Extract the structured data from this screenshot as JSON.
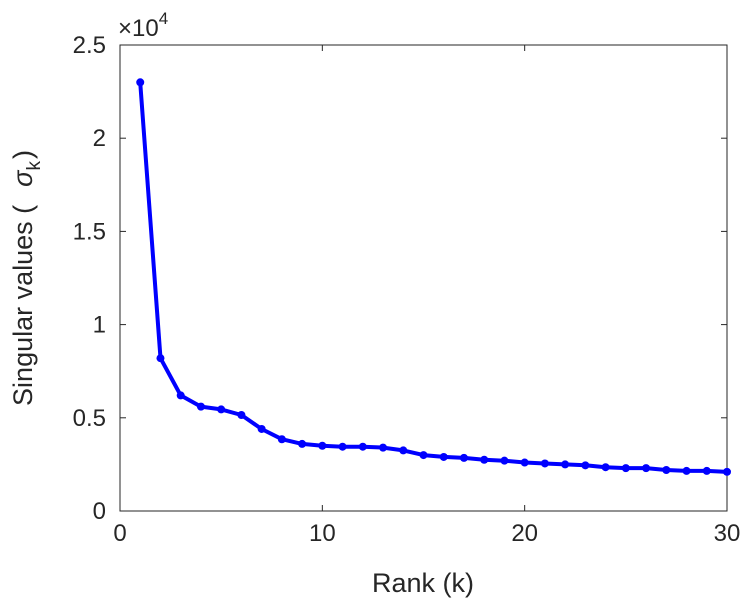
{
  "chart_data": {
    "type": "line",
    "title": "",
    "xlabel": "Rank (k)",
    "ylabel": "Singular values (",
    "ylabel_symbol": "σ",
    "ylabel_subscript": "k",
    "ylabel_close": ")",
    "y_multiplier_base": "×10",
    "y_multiplier_exponent": "4",
    "xlim": [
      0,
      30
    ],
    "ylim": [
      0,
      2.5
    ],
    "x_ticks": [
      0,
      10,
      20,
      30
    ],
    "x_tick_labels": [
      "0",
      "10",
      "20",
      "30"
    ],
    "y_ticks": [
      0,
      0.5,
      1,
      1.5,
      2,
      2.5
    ],
    "y_tick_labels": [
      "0",
      "0.5",
      "1",
      "1.5",
      "2",
      "2.5"
    ],
    "grid": false,
    "series": [
      {
        "color": "#0000ff",
        "marker": "circle",
        "x": [
          1,
          2,
          3,
          4,
          5,
          6,
          7,
          8,
          9,
          10,
          11,
          12,
          13,
          14,
          15,
          16,
          17,
          18,
          19,
          20,
          21,
          22,
          23,
          24,
          25,
          26,
          27,
          28,
          29,
          30
        ],
        "y": [
          2.3,
          0.82,
          0.62,
          0.56,
          0.545,
          0.515,
          0.44,
          0.385,
          0.36,
          0.35,
          0.345,
          0.345,
          0.34,
          0.325,
          0.3,
          0.29,
          0.285,
          0.275,
          0.27,
          0.26,
          0.255,
          0.25,
          0.245,
          0.235,
          0.23,
          0.23,
          0.22,
          0.215,
          0.215,
          0.21
        ]
      }
    ]
  }
}
